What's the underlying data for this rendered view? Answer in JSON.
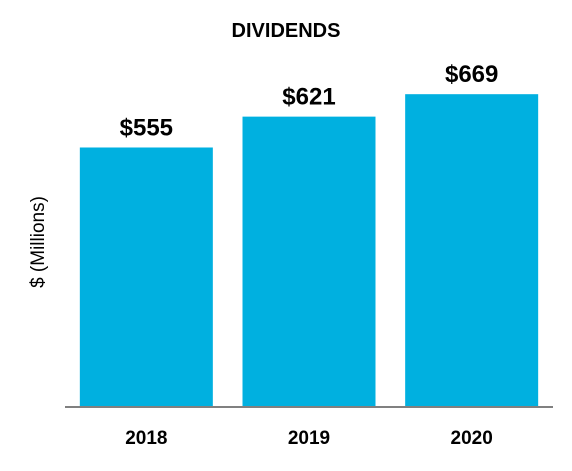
{
  "colors": {
    "bar": "#00b0e0",
    "axis": "#808080",
    "text": "#000000"
  },
  "chart_data": {
    "type": "bar",
    "title": "DIVIDENDS",
    "xlabel": "",
    "ylabel": "$ (Millions)",
    "categories": [
      "2018",
      "2019",
      "2020"
    ],
    "values": [
      555,
      621,
      669
    ],
    "data_labels": [
      "$555",
      "$621",
      "$669"
    ],
    "ylim": [
      0,
      725
    ],
    "grid": false,
    "legend": "none"
  }
}
